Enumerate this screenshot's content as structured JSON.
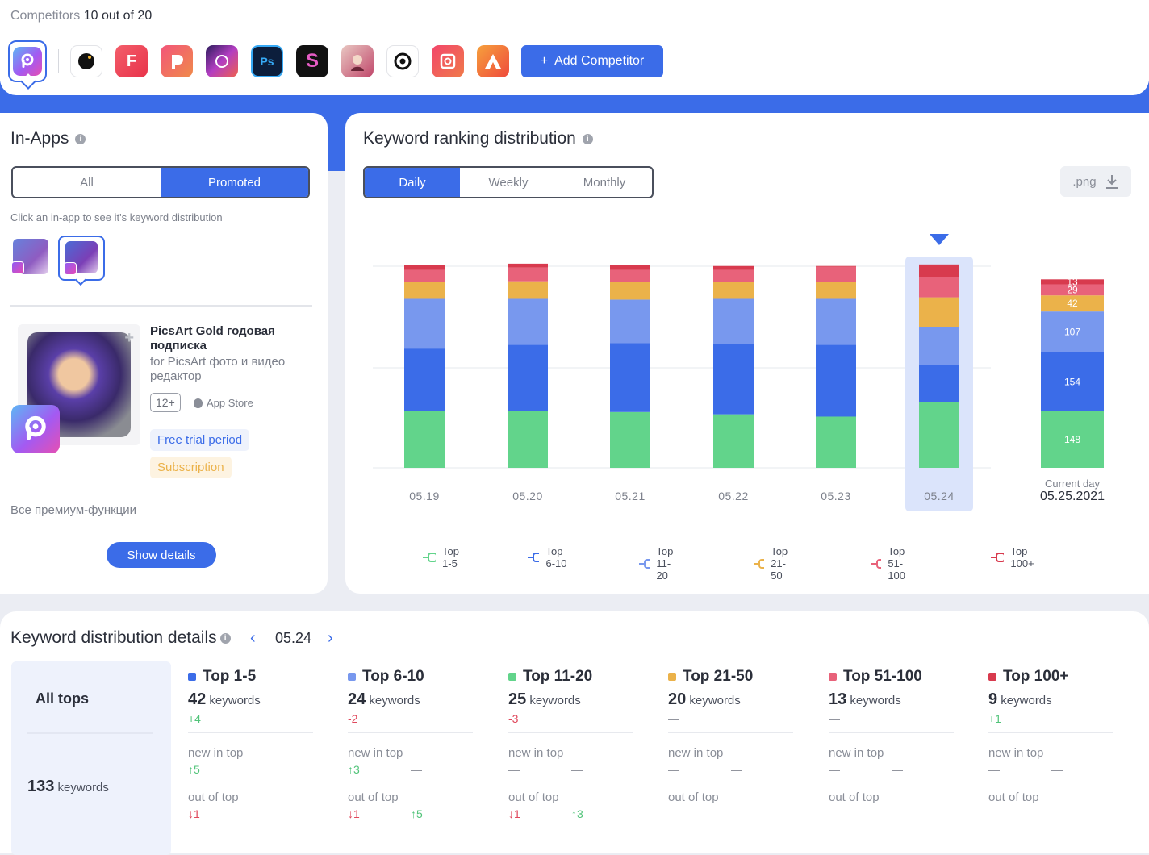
{
  "competitors": {
    "label": "Competitors",
    "count_text": "10 out of 20",
    "add_button": "Add Competitor"
  },
  "inapps": {
    "title": "In-Apps",
    "tabs": [
      "All",
      "Promoted"
    ],
    "hint": "Click an in-app to see it's keyword distribution",
    "product": {
      "name": "PicsArt Gold годовая подписка",
      "subtitle": "for PicsArt фото и видео редактор",
      "age": "12+",
      "store": "App Store",
      "badge_trial": "Free trial period",
      "badge_sub": "Subscription",
      "description": "Все премиум-функции"
    },
    "show_details": "Show details"
  },
  "krd": {
    "title": "Keyword ranking distribution",
    "tabs": [
      "Daily",
      "Weekly",
      "Monthly"
    ],
    "export": ".png",
    "current_label": "Current day",
    "current_date": "05.25.2021"
  },
  "chart_data": {
    "type": "bar",
    "stacked": true,
    "categories": [
      "05.19",
      "05.20",
      "05.21",
      "05.22",
      "05.23",
      "05.24",
      "05.25.2021"
    ],
    "selected_category": "05.24",
    "series": [
      {
        "name": "Top 1-5",
        "color": "#62d48b",
        "values": [
          148,
          148,
          146,
          140,
          134,
          172,
          148
        ]
      },
      {
        "name": "Top 6-10",
        "color": "#3b6ce8",
        "values": [
          164,
          174,
          180,
          184,
          188,
          98,
          154
        ]
      },
      {
        "name": "Top 11-20",
        "color": "#7898ee",
        "values": [
          130,
          120,
          114,
          118,
          120,
          98,
          107
        ]
      },
      {
        "name": "Top 21-50",
        "color": "#ebb24a",
        "values": [
          44,
          46,
          46,
          44,
          44,
          78,
          42
        ]
      },
      {
        "name": "Top 51-100",
        "color": "#e8627a",
        "values": [
          32,
          36,
          32,
          32,
          40,
          52,
          29
        ]
      },
      {
        "name": "Top 100+",
        "color": "#d83a4e",
        "values": [
          12,
          10,
          12,
          10,
          2,
          34,
          13
        ]
      }
    ],
    "labeled_values_last": [
      "148",
      "154",
      "107",
      "42",
      "29",
      "13"
    ],
    "legend_position": "bottom"
  },
  "details": {
    "title": "Keyword distribution details",
    "date": "05.24",
    "all_tops_label": "All tops",
    "all_tops_count": "133",
    "keywords_word": "keywords",
    "new_in_top": "new in top",
    "out_of_top": "out of top",
    "columns": [
      {
        "name": "Top 1-5",
        "color": "#3b6ce8",
        "count": "42",
        "change": "+4",
        "change_kind": "green",
        "new": [
          "↑5",
          ""
        ],
        "out": [
          "↓1",
          ""
        ]
      },
      {
        "name": "Top 6-10",
        "color": "#7898ee",
        "count": "24",
        "change": "-2",
        "change_kind": "red",
        "new": [
          "↑3",
          "—"
        ],
        "out": [
          "↓1",
          "↑5"
        ]
      },
      {
        "name": "Top 11-20",
        "color": "#62d48b",
        "count": "25",
        "change": "-3",
        "change_kind": "red",
        "new": [
          "—",
          "—"
        ],
        "out": [
          "↓1",
          "↑3"
        ]
      },
      {
        "name": "Top 21-50",
        "color": "#ebb24a",
        "count": "20",
        "change": "—",
        "change_kind": "dash",
        "new": [
          "—",
          "—"
        ],
        "out": [
          "—",
          "—"
        ]
      },
      {
        "name": "Top 51-100",
        "color": "#e8627a",
        "count": "13",
        "change": "—",
        "change_kind": "dash",
        "new": [
          "—",
          "—"
        ],
        "out": [
          "—",
          "—"
        ]
      },
      {
        "name": "Top 100+",
        "color": "#d83a4e",
        "count": "9",
        "change": "+1",
        "change_kind": "green",
        "new": [
          "—",
          "—"
        ],
        "out": [
          "—",
          "—"
        ]
      }
    ]
  }
}
